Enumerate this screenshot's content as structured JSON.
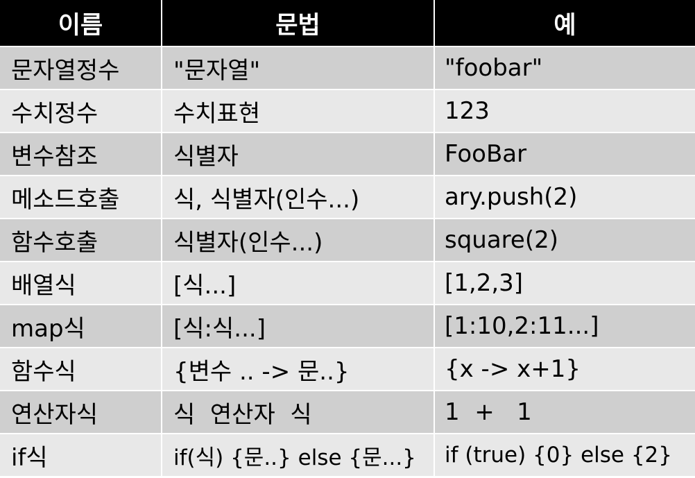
{
  "table": {
    "headers": [
      "이름",
      "문법",
      "예"
    ],
    "rows": [
      {
        "name": "문자열정수",
        "syntax": "\"문자열\"",
        "example": "\"foobar\""
      },
      {
        "name": "수치정수",
        "syntax": "수치표현",
        "example": "123"
      },
      {
        "name": "변수참조",
        "syntax": "식별자",
        "example": "FooBar"
      },
      {
        "name": "메소드호출",
        "syntax": "식, 식별자(인수...)",
        "example": "ary.push(2)"
      },
      {
        "name": "함수호출",
        "syntax": "식별자(인수...)",
        "example": "square(2)"
      },
      {
        "name": "배열식",
        "syntax": "[식...]",
        "example": "[1,2,3]"
      },
      {
        "name": "map식",
        "syntax": "[식:식...]",
        "example": "[1:10,2:11...]"
      },
      {
        "name": "함수식",
        "syntax": "{변수 .. -> 문..}",
        "example": "{x -> x+1}"
      },
      {
        "name": "연산자식",
        "syntax": "식  연산자  식",
        "example": "1  +   1"
      },
      {
        "name": "if식",
        "syntax": "if(식) {문..} else {문...}",
        "example": "if (true) {0} else {2}"
      }
    ]
  },
  "colors": {
    "header_bg": "#000000",
    "header_text": "#ffffff",
    "row_odd_bg": "#cfcfcf",
    "row_even_bg": "#e8e8e8"
  }
}
